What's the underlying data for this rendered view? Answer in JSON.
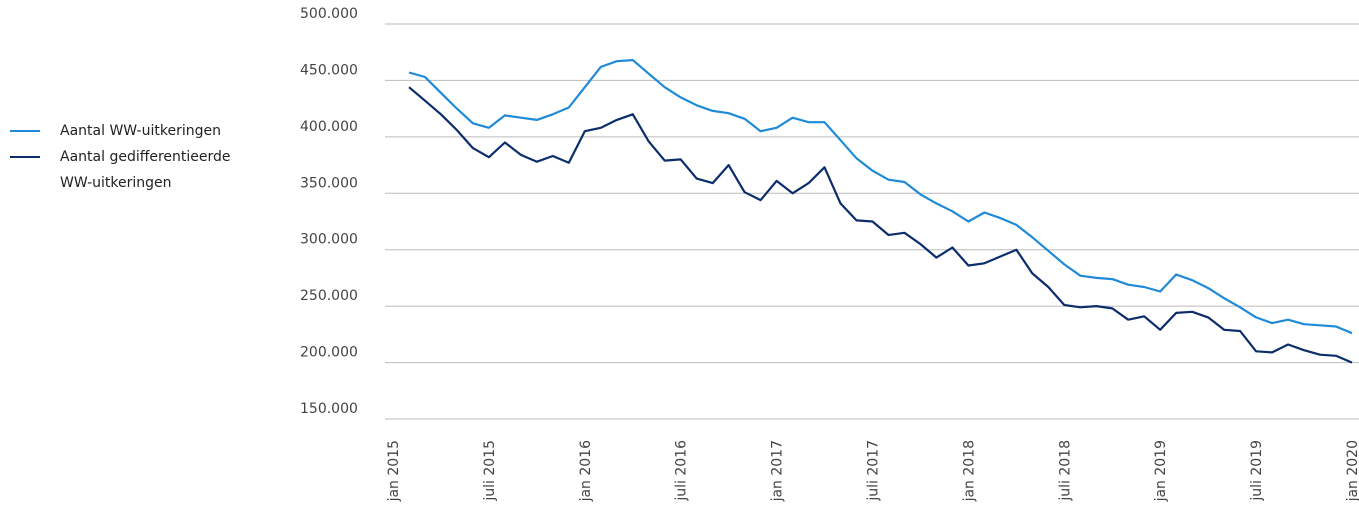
{
  "chart_data": {
    "type": "line",
    "categories": [
      "jan 2015",
      null,
      null,
      null,
      null,
      null,
      "juli 2015",
      null,
      null,
      null,
      null,
      null,
      "jan 2016",
      null,
      null,
      null,
      null,
      null,
      "juli 2016",
      null,
      null,
      null,
      null,
      null,
      "jan 2017",
      null,
      null,
      null,
      null,
      null,
      "juli 2017",
      null,
      null,
      null,
      null,
      null,
      "jan 2018",
      null,
      null,
      null,
      null,
      null,
      "juli 2018",
      null,
      null,
      null,
      null,
      null,
      "jan 2019",
      null,
      null,
      null,
      null,
      null,
      "juli 2019",
      null,
      null,
      null,
      null,
      null,
      "jan 2020"
    ],
    "series": [
      {
        "name": "Aantal WW-uitkeringen",
        "color": "#1f8ad8",
        "values": [
          null,
          457000,
          453000,
          439000,
          425000,
          412000,
          408000,
          419000,
          417000,
          415000,
          420000,
          426000,
          444000,
          462000,
          467000,
          468000,
          456000,
          444000,
          435000,
          428000,
          423000,
          421000,
          416000,
          405000,
          408000,
          417000,
          413000,
          413000,
          397000,
          381000,
          370000,
          362000,
          360000,
          349000,
          341000,
          334000,
          325000,
          333000,
          328000,
          322000,
          311000,
          299000,
          287000,
          277000,
          275000,
          274000,
          269000,
          267000,
          263000,
          278000,
          273000,
          266000,
          257000,
          249000,
          240000,
          235000,
          238000,
          234000,
          233000,
          232000,
          226000
        ]
      },
      {
        "name": "Aantal gedifferentieerde WW-uitkeringen",
        "color": "#0b2d6b",
        "values": [
          null,
          444000,
          432000,
          420000,
          406000,
          390000,
          382000,
          395000,
          384000,
          378000,
          383000,
          377000,
          405000,
          408000,
          415000,
          420000,
          396000,
          379000,
          380000,
          363000,
          359000,
          375000,
          351000,
          344000,
          361000,
          350000,
          359000,
          373000,
          341000,
          326000,
          325000,
          313000,
          315000,
          305000,
          293000,
          302000,
          286000,
          288000,
          294000,
          300000,
          279000,
          267000,
          251000,
          249000,
          250000,
          248000,
          238000,
          241000,
          229000,
          244000,
          245000,
          240000,
          229000,
          228000,
          210000,
          209000,
          216000,
          211000,
          207000,
          206000,
          200000
        ]
      }
    ],
    "ylim": [
      150000,
      500000
    ],
    "yticks": [
      {
        "value": 150000,
        "label": "150.000"
      },
      {
        "value": 200000,
        "label": "200.000"
      },
      {
        "value": 250000,
        "label": "250.000"
      },
      {
        "value": 300000,
        "label": "300.000"
      },
      {
        "value": 350000,
        "label": "350.000"
      },
      {
        "value": 400000,
        "label": "400.000"
      },
      {
        "value": 450000,
        "label": "450.000"
      },
      {
        "value": 500000,
        "label": "500.000"
      }
    ],
    "grid": true
  }
}
